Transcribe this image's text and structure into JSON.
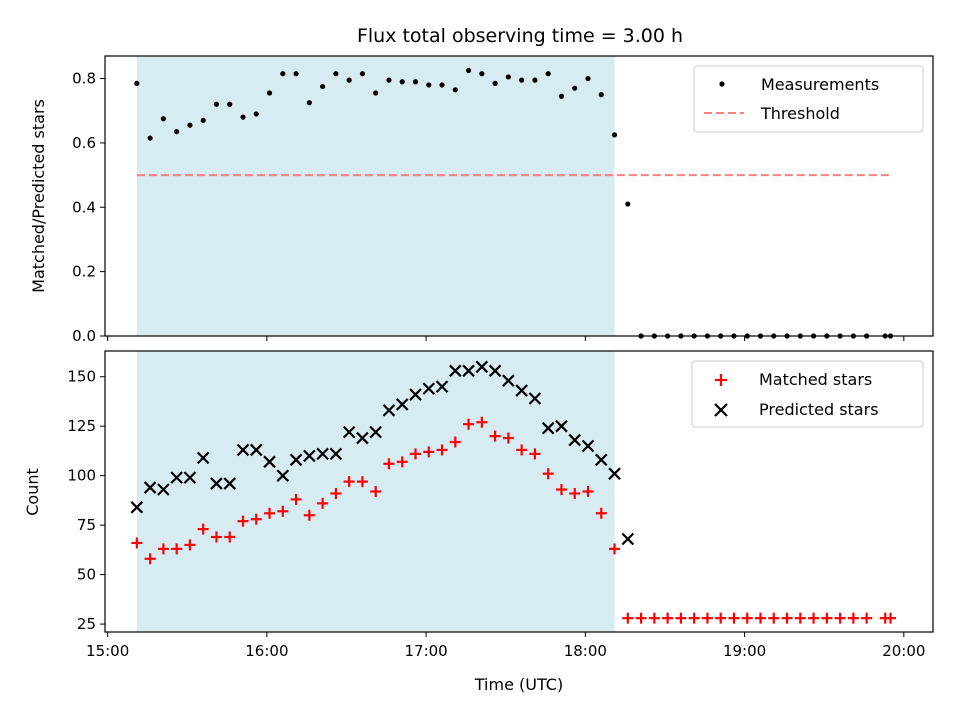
{
  "chart_data": {
    "title": "Flux total observing time = 3.00 h",
    "xlabel": "Time (UTC)",
    "x_ticks": [
      "15:00",
      "16:00",
      "17:00",
      "18:00",
      "19:00",
      "20:00"
    ],
    "xlim": [
      "14:59",
      "20:11"
    ],
    "observing_window": [
      "15:11",
      "18:11"
    ],
    "window_color": "#add8e6",
    "panels": [
      {
        "type": "scatter",
        "ylabel": "Matched/Predicted stars",
        "ylim": [
          0,
          0.87
        ],
        "y_ticks": [
          "0.0",
          "0.2",
          "0.4",
          "0.6",
          "0.8"
        ],
        "legend_position": "top-right",
        "series": [
          {
            "name": "Measurements",
            "marker": "dot",
            "color": "#000000",
            "points": [
              [
                "15:11",
                0.785
              ],
              [
                "15:16",
                0.615
              ],
              [
                "15:21",
                0.675
              ],
              [
                "15:26",
                0.635
              ],
              [
                "15:31",
                0.655
              ],
              [
                "15:36",
                0.67
              ],
              [
                "15:41",
                0.72
              ],
              [
                "15:46",
                0.72
              ],
              [
                "15:51",
                0.68
              ],
              [
                "15:56",
                0.69
              ],
              [
                "16:01",
                0.755
              ],
              [
                "16:06",
                0.815
              ],
              [
                "16:11",
                0.815
              ],
              [
                "16:16",
                0.725
              ],
              [
                "16:21",
                0.775
              ],
              [
                "16:26",
                0.815
              ],
              [
                "16:31",
                0.795
              ],
              [
                "16:36",
                0.815
              ],
              [
                "16:41",
                0.755
              ],
              [
                "16:46",
                0.795
              ],
              [
                "16:51",
                0.79
              ],
              [
                "16:56",
                0.79
              ],
              [
                "17:01",
                0.78
              ],
              [
                "17:06",
                0.78
              ],
              [
                "17:11",
                0.765
              ],
              [
                "17:16",
                0.825
              ],
              [
                "17:21",
                0.815
              ],
              [
                "17:26",
                0.785
              ],
              [
                "17:31",
                0.805
              ],
              [
                "17:36",
                0.795
              ],
              [
                "17:41",
                0.795
              ],
              [
                "17:46",
                0.815
              ],
              [
                "17:51",
                0.745
              ],
              [
                "17:56",
                0.77
              ],
              [
                "18:01",
                0.8
              ],
              [
                "18:06",
                0.75
              ],
              [
                "18:11",
                0.625
              ],
              [
                "18:16",
                0.41
              ],
              [
                "18:21",
                0.0
              ],
              [
                "18:26",
                0.0
              ],
              [
                "18:31",
                0.0
              ],
              [
                "18:36",
                0.0
              ],
              [
                "18:41",
                0.0
              ],
              [
                "18:46",
                0.0
              ],
              [
                "18:51",
                0.0
              ],
              [
                "18:56",
                0.0
              ],
              [
                "19:01",
                0.0
              ],
              [
                "19:06",
                0.0
              ],
              [
                "19:11",
                0.0
              ],
              [
                "19:16",
                0.0
              ],
              [
                "19:21",
                0.0
              ],
              [
                "19:26",
                0.0
              ],
              [
                "19:31",
                0.0
              ],
              [
                "19:36",
                0.0
              ],
              [
                "19:41",
                0.0
              ],
              [
                "19:46",
                0.0
              ],
              [
                "19:53",
                0.0
              ],
              [
                "19:55",
                0.0
              ]
            ]
          },
          {
            "name": "Threshold",
            "type": "dashed-line",
            "color": "#ff7f7f",
            "y": 0.5,
            "x_range": [
              "15:11",
              "19:55"
            ]
          }
        ]
      },
      {
        "type": "scatter",
        "ylabel": "Count",
        "ylim": [
          21,
          163
        ],
        "y_ticks": [
          "25",
          "50",
          "75",
          "100",
          "125",
          "150"
        ],
        "legend_position": "top-right",
        "x": [
          "15:11",
          "15:16",
          "15:21",
          "15:26",
          "15:31",
          "15:36",
          "15:41",
          "15:46",
          "15:51",
          "15:56",
          "16:01",
          "16:06",
          "16:11",
          "16:16",
          "16:21",
          "16:26",
          "16:31",
          "16:36",
          "16:41",
          "16:46",
          "16:51",
          "16:56",
          "17:01",
          "17:06",
          "17:11",
          "17:16",
          "17:21",
          "17:26",
          "17:31",
          "17:36",
          "17:41",
          "17:46",
          "17:51",
          "17:56",
          "18:01",
          "18:06",
          "18:11",
          "18:16",
          "18:21",
          "18:26",
          "18:31",
          "18:36",
          "18:41",
          "18:46",
          "18:51",
          "18:56",
          "19:01",
          "19:06",
          "19:11",
          "19:16",
          "19:21",
          "19:26",
          "19:31",
          "19:36",
          "19:41",
          "19:46",
          "19:53",
          "19:55"
        ],
        "series": [
          {
            "name": "Matched stars",
            "marker": "plus",
            "color": "#ff0000",
            "values": [
              66,
              58,
              63,
              63,
              65,
              73,
              69,
              69,
              77,
              78,
              81,
              82,
              88,
              80,
              86,
              91,
              97,
              97,
              92,
              106,
              107,
              111,
              112,
              113,
              117,
              126,
              127,
              120,
              119,
              113,
              111,
              101,
              93,
              91,
              92,
              81,
              63,
              28,
              28,
              28,
              28,
              28,
              28,
              28,
              28,
              28,
              28,
              28,
              28,
              28,
              28,
              28,
              28,
              28,
              28,
              28,
              28,
              28
            ]
          },
          {
            "name": "Predicted stars",
            "marker": "x",
            "color": "#000000",
            "values": [
              84,
              94,
              93,
              99,
              99,
              109,
              96,
              96,
              113,
              113,
              107,
              100,
              108,
              110,
              111,
              111,
              122,
              119,
              122,
              133,
              136,
              141,
              144,
              145,
              153,
              153,
              155,
              153,
              148,
              143,
              139,
              124,
              125,
              118,
              115,
              108,
              101,
              68,
              null,
              null,
              null,
              null,
              null,
              null,
              null,
              null,
              null,
              null,
              null,
              null,
              null,
              null,
              null,
              null,
              null,
              null,
              null,
              null
            ]
          }
        ]
      }
    ]
  }
}
